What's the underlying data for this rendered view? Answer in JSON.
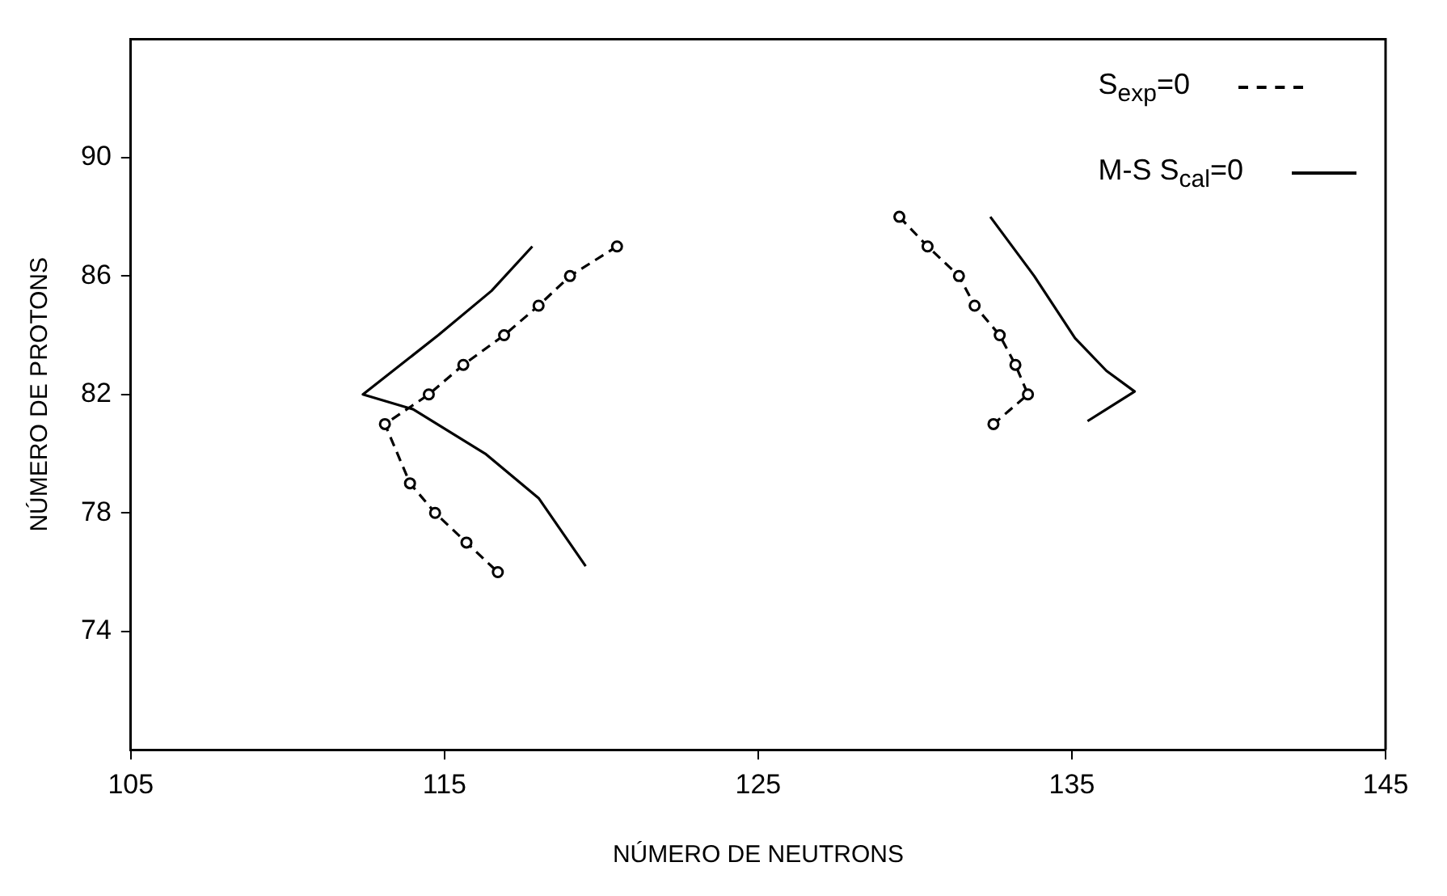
{
  "chart_data": {
    "type": "line",
    "xlabel": "NÚMERO DE NEUTRONS",
    "ylabel": "NÚMERO DE PROTONS",
    "xlim": [
      105,
      145
    ],
    "xticks": [
      105,
      115,
      125,
      135,
      145
    ],
    "ylim": [
      70,
      94
    ],
    "yticks": [
      74,
      78,
      82,
      86,
      90
    ],
    "grid": false,
    "legend": "top right",
    "series": [
      {
        "name": "S$_{exp}$=0",
        "color": "#000000",
        "line_style": "dashed",
        "marker": "circle",
        "x": [
          120.5,
          119.0,
          118.0,
          116.9,
          115.6,
          114.5,
          113.1,
          113.9,
          114.7,
          115.7,
          116.7
        ],
        "values": [
          87,
          86,
          85,
          84,
          83,
          82,
          81,
          79,
          78,
          77,
          76
        ]
      },
      {
        "name": "M-S S$_{cal}$=0",
        "color": "#000000",
        "line_style": "solid",
        "marker": "none",
        "x": [
          117.8,
          116.5,
          114.8,
          112.4,
          114.0,
          116.3,
          118.0,
          119.5
        ],
        "values": [
          87,
          85.5,
          84,
          82,
          81.5,
          80,
          78.5,
          76.2
        ]
      },
      {
        "color": "#000000",
        "line_style": "dashed",
        "marker": "circle",
        "x": [
          129.5,
          130.4,
          131.4,
          131.9,
          132.7,
          133.2,
          133.6,
          132.5
        ],
        "values": [
          88,
          87,
          86,
          85,
          84,
          83,
          82,
          81
        ]
      },
      {
        "color": "#000000",
        "line_style": "solid",
        "marker": "none",
        "x": [
          132.4,
          133.8,
          135.1,
          136.1,
          137.0,
          135.5
        ],
        "values": [
          88,
          86,
          83.9,
          82.8,
          82.1,
          81.1
        ]
      }
    ]
  }
}
